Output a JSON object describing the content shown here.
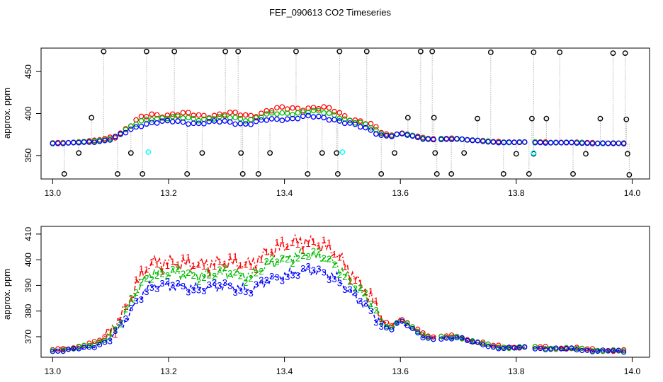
{
  "chart_data": [
    {
      "type": "scatter",
      "title": "FEF_090613  CO2 Timeseries",
      "xlabel": "",
      "ylabel": "approx. ppm",
      "xlim": [
        12.98,
        14.03
      ],
      "ylim": [
        322,
        478
      ],
      "xticks": [
        "13.0",
        "13.2",
        "13.4",
        "13.6",
        "13.8",
        "14.0"
      ],
      "yticks": [
        "350",
        "400",
        "450"
      ],
      "colors": {
        "series1": "#ff0000",
        "series2": "#00bb00",
        "series3": "#0000ff",
        "raw": "#000000",
        "cyan": "#00ffff",
        "line": "#b4b4b4"
      },
      "marker": "open-circle",
      "spike_points": [
        {
          "x": 13.02,
          "y": 328
        },
        {
          "x": 13.045,
          "y": 353
        },
        {
          "x": 13.067,
          "y": 395
        },
        {
          "x": 13.088,
          "y": 474
        },
        {
          "x": 13.112,
          "y": 328
        },
        {
          "x": 13.135,
          "y": 353
        },
        {
          "x": 13.155,
          "y": 328
        },
        {
          "x": 13.162,
          "y": 474
        },
        {
          "x": 13.21,
          "y": 474
        },
        {
          "x": 13.232,
          "y": 328
        },
        {
          "x": 13.258,
          "y": 353
        },
        {
          "x": 13.298,
          "y": 474
        },
        {
          "x": 13.32,
          "y": 474
        },
        {
          "x": 13.325,
          "y": 353
        },
        {
          "x": 13.328,
          "y": 328
        },
        {
          "x": 13.355,
          "y": 328
        },
        {
          "x": 13.375,
          "y": 353
        },
        {
          "x": 13.42,
          "y": 474
        },
        {
          "x": 13.44,
          "y": 328
        },
        {
          "x": 13.465,
          "y": 353
        },
        {
          "x": 13.49,
          "y": 353
        },
        {
          "x": 13.492,
          "y": 328
        },
        {
          "x": 13.495,
          "y": 474
        },
        {
          "x": 13.542,
          "y": 474
        },
        {
          "x": 13.567,
          "y": 328
        },
        {
          "x": 13.59,
          "y": 353
        },
        {
          "x": 13.613,
          "y": 395
        },
        {
          "x": 13.635,
          "y": 474
        },
        {
          "x": 13.655,
          "y": 474
        },
        {
          "x": 13.658,
          "y": 395
        },
        {
          "x": 13.66,
          "y": 353
        },
        {
          "x": 13.663,
          "y": 328
        },
        {
          "x": 13.688,
          "y": 328
        },
        {
          "x": 13.71,
          "y": 353
        },
        {
          "x": 13.733,
          "y": 394
        },
        {
          "x": 13.756,
          "y": 473
        },
        {
          "x": 13.778,
          "y": 328
        },
        {
          "x": 13.8,
          "y": 352
        },
        {
          "x": 13.822,
          "y": 328
        },
        {
          "x": 13.827,
          "y": 394
        },
        {
          "x": 13.83,
          "y": 473
        },
        {
          "x": 13.83,
          "y": 352
        },
        {
          "x": 13.852,
          "y": 394
        },
        {
          "x": 13.875,
          "y": 473
        },
        {
          "x": 13.898,
          "y": 328
        },
        {
          "x": 13.92,
          "y": 352
        },
        {
          "x": 13.945,
          "y": 394
        },
        {
          "x": 13.967,
          "y": 472
        },
        {
          "x": 13.988,
          "y": 472
        },
        {
          "x": 13.99,
          "y": 393
        },
        {
          "x": 13.992,
          "y": 352
        },
        {
          "x": 13.995,
          "y": 327
        }
      ],
      "cyan_points": [
        {
          "x": 13.165,
          "y": 354
        },
        {
          "x": 13.5,
          "y": 354
        },
        {
          "x": 13.83,
          "y": 353
        }
      ]
    },
    {
      "type": "line",
      "xlabel": "",
      "ylabel": "approx. ppm",
      "xlim": [
        12.98,
        14.03
      ],
      "ylim": [
        362,
        413
      ],
      "xticks": [
        "13.0",
        "13.2",
        "13.4",
        "13.6",
        "13.8",
        "14.0"
      ],
      "yticks": [
        "370",
        "380",
        "390",
        "400",
        "410"
      ],
      "series": [
        {
          "name": "1",
          "color": "#ff0000",
          "line": "dashdot"
        },
        {
          "name": "2",
          "color": "#00bb00",
          "line": "dashdot"
        },
        {
          "name": "3",
          "color": "#0000ff",
          "line": "dashed"
        }
      ],
      "gaps": [
        [
          13.662,
          13.668
        ],
        [
          13.818,
          13.828
        ]
      ],
      "baseline_profile": [
        [
          13.0,
          364.5
        ],
        [
          13.04,
          365
        ],
        [
          13.07,
          366
        ],
        [
          13.09,
          368
        ],
        [
          13.11,
          372
        ],
        [
          13.13,
          378
        ],
        [
          13.145,
          384
        ],
        [
          13.155,
          387
        ],
        [
          13.17,
          390
        ],
        [
          13.2,
          390
        ],
        [
          13.25,
          389
        ],
        [
          13.3,
          390
        ],
        [
          13.34,
          388
        ],
        [
          13.37,
          392
        ],
        [
          13.4,
          394
        ],
        [
          13.44,
          396
        ],
        [
          13.47,
          395
        ],
        [
          13.49,
          393
        ],
        [
          13.51,
          388
        ],
        [
          13.53,
          384
        ],
        [
          13.55,
          380
        ],
        [
          13.57,
          374
        ],
        [
          13.585,
          373
        ],
        [
          13.6,
          376
        ],
        [
          13.62,
          373
        ],
        [
          13.64,
          370
        ],
        [
          13.66,
          369
        ],
        [
          13.7,
          370
        ],
        [
          13.72,
          368
        ],
        [
          13.76,
          366
        ],
        [
          13.8,
          365.5
        ],
        [
          13.85,
          365.5
        ],
        [
          13.9,
          365
        ],
        [
          13.95,
          364.5
        ],
        [
          13.99,
          364
        ]
      ],
      "offset_profile": [
        [
          13.0,
          0.5
        ],
        [
          13.08,
          1.5
        ],
        [
          13.11,
          3
        ],
        [
          13.14,
          6
        ],
        [
          13.17,
          9
        ],
        [
          13.3,
          9
        ],
        [
          13.42,
          12
        ],
        [
          13.5,
          9
        ],
        [
          13.55,
          5
        ],
        [
          13.58,
          1.5
        ],
        [
          13.62,
          1
        ],
        [
          13.7,
          0.5
        ],
        [
          13.99,
          0.3
        ]
      ]
    }
  ]
}
